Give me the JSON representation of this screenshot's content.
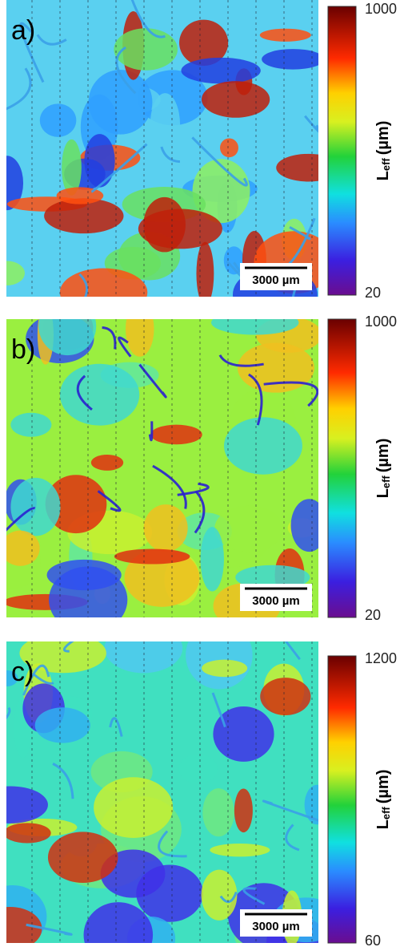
{
  "panels": [
    {
      "label": "a)",
      "scale_bar": "3000 µm",
      "colorbar": {
        "max": 1000,
        "min": 20,
        "label": "L",
        "label_sub": "eff",
        "unit": "(µm)"
      }
    },
    {
      "label": "b)",
      "scale_bar": "3000 µm",
      "colorbar": {
        "max": 1000,
        "min": 20,
        "label": "L",
        "label_sub": "eff",
        "unit": "(µm)"
      }
    },
    {
      "label": "c)",
      "scale_bar": "3000 µm",
      "colorbar": {
        "max": 1200,
        "min": 60,
        "label": "L",
        "label_sub": "eff",
        "unit": "(µm)"
      }
    }
  ]
}
